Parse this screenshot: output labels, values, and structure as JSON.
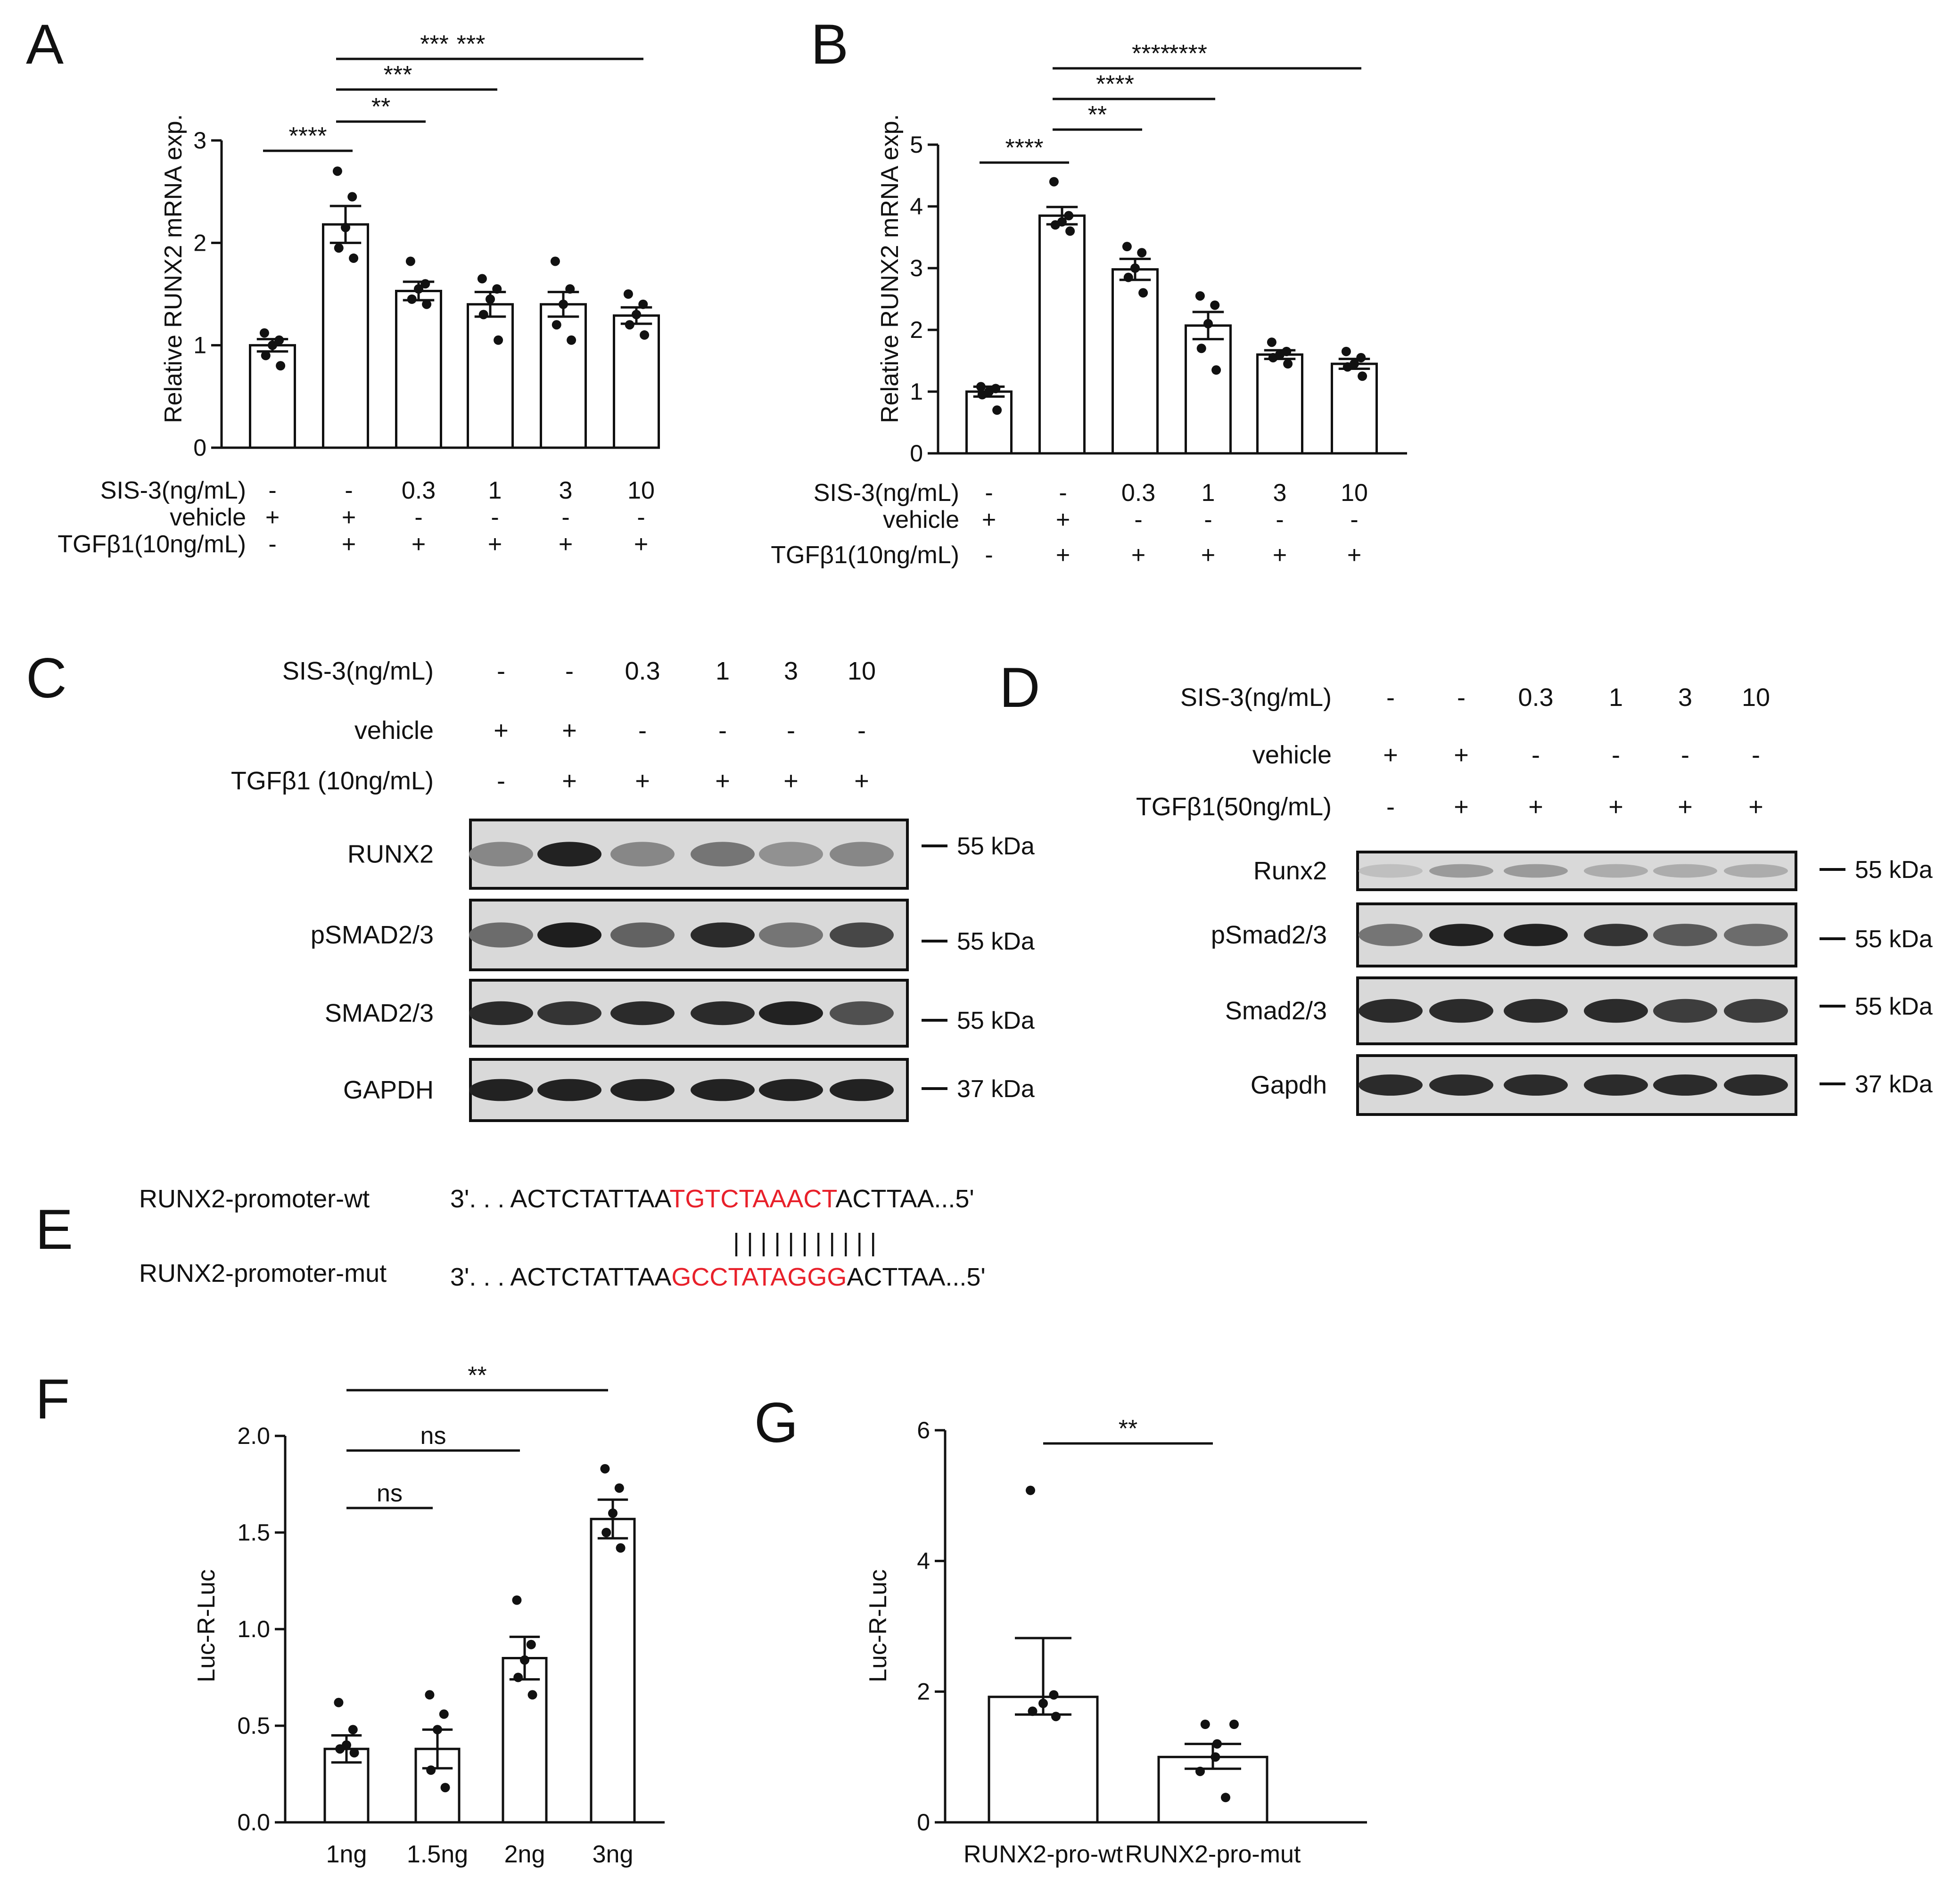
{
  "panels": {
    "A": {
      "letter": "A"
    },
    "B": {
      "letter": "B"
    },
    "C": {
      "letter": "C"
    },
    "D": {
      "letter": "D"
    },
    "E": {
      "letter": "E"
    },
    "F": {
      "letter": "F"
    },
    "G": {
      "letter": "G"
    }
  },
  "treatments": {
    "sis_label": "SIS-3(ng/mL)",
    "vehicle_label": "vehicle",
    "tgf_label_ab": "TGFβ1(10ng/mL)",
    "tgf_label_c": "TGFβ1 (10ng/mL)",
    "tgf_label_d": "TGFβ1(50ng/mL)",
    "sis_values": [
      "-",
      "-",
      "0.3",
      "1",
      "3",
      "10"
    ],
    "vehicle_values": [
      "+",
      "+",
      "-",
      "-",
      "-",
      "-"
    ],
    "tgf_values": [
      "-",
      "+",
      "+",
      "+",
      "+",
      "+"
    ]
  },
  "blots": {
    "C": {
      "rows": [
        {
          "name": "RUNX2",
          "kda": "55 kDa"
        },
        {
          "name": "pSMAD2/3",
          "kda": "55 kDa"
        },
        {
          "name": "SMAD2/3",
          "kda": "55 kDa"
        },
        {
          "name": "GAPDH",
          "kda": "37 kDa"
        }
      ],
      "intensity": [
        [
          0.35,
          0.9,
          0.35,
          0.45,
          0.3,
          0.35
        ],
        [
          0.5,
          0.92,
          0.55,
          0.85,
          0.45,
          0.7
        ],
        [
          0.85,
          0.8,
          0.85,
          0.85,
          0.9,
          0.65
        ],
        [
          0.9,
          0.9,
          0.9,
          0.9,
          0.9,
          0.9
        ]
      ]
    },
    "D": {
      "rows": [
        {
          "name": "Runx2",
          "kda": "55 kDa"
        },
        {
          "name": "pSmad2/3",
          "kda": "55 kDa"
        },
        {
          "name": "Smad2/3",
          "kda": "55 kDa"
        },
        {
          "name": "Gapdh",
          "kda": "37 kDa"
        }
      ],
      "intensity": [
        [
          0.05,
          0.25,
          0.25,
          0.15,
          0.15,
          0.15
        ],
        [
          0.45,
          0.9,
          0.9,
          0.8,
          0.6,
          0.5
        ],
        [
          0.85,
          0.85,
          0.85,
          0.85,
          0.75,
          0.75
        ],
        [
          0.85,
          0.85,
          0.85,
          0.85,
          0.85,
          0.85
        ]
      ]
    }
  },
  "sequence": {
    "wt_label": "RUNX2-promoter-wt",
    "mut_label": "RUNX2-promoter-mut",
    "prefix": "3'. . . ACTCTATTAA",
    "wt_core": "TGTCTAAACT",
    "mut_core": "GCCTATAGGG",
    "suffix": "ACTTAA...5'",
    "bars": "| | | | | | | | | | |",
    "highlight_color": "#e8202a"
  },
  "chart_data": [
    {
      "panel": "A",
      "type": "bar",
      "ylabel": "Relative RUNX2 mRNA exp.",
      "ylim": [
        0,
        3
      ],
      "yticks": [
        "0",
        "1",
        "2",
        "3"
      ],
      "values": [
        1.0,
        2.18,
        1.53,
        1.4,
        1.4,
        1.29
      ],
      "sem": [
        0.06,
        0.18,
        0.09,
        0.12,
        0.12,
        0.08
      ],
      "points": [
        [
          0.8,
          0.9,
          1.0,
          1.05,
          1.12
        ],
        [
          1.85,
          1.95,
          2.15,
          2.45,
          2.7
        ],
        [
          1.4,
          1.45,
          1.55,
          1.6,
          1.82
        ],
        [
          1.05,
          1.3,
          1.45,
          1.55,
          1.65
        ],
        [
          1.05,
          1.2,
          1.4,
          1.55,
          1.82
        ],
        [
          1.1,
          1.2,
          1.3,
          1.4,
          1.5
        ]
      ],
      "comparisons": [
        {
          "from": 0,
          "to": 1,
          "label": "****"
        },
        {
          "from": 1,
          "to": 2,
          "label": "**"
        },
        {
          "from": 1,
          "to": 3,
          "label": "***"
        },
        {
          "from": 1,
          "to": 4,
          "label": "***"
        },
        {
          "from": 1,
          "to": 5,
          "label": "***"
        }
      ]
    },
    {
      "panel": "B",
      "type": "bar",
      "ylabel": "Relative RUNX2 mRNA exp.",
      "ylim": [
        0,
        5
      ],
      "yticks": [
        "0",
        "1",
        "2",
        "3",
        "4",
        "5"
      ],
      "values": [
        1.0,
        3.85,
        2.98,
        2.07,
        1.6,
        1.45
      ],
      "sem": [
        0.08,
        0.14,
        0.17,
        0.22,
        0.07,
        0.08
      ],
      "points": [
        [
          0.7,
          0.95,
          1.0,
          1.05,
          1.08
        ],
        [
          3.6,
          3.7,
          3.75,
          3.85,
          4.4
        ],
        [
          2.6,
          2.85,
          3.0,
          3.25,
          3.35
        ],
        [
          1.35,
          1.7,
          2.1,
          2.4,
          2.55
        ],
        [
          1.45,
          1.55,
          1.6,
          1.65,
          1.8
        ],
        [
          1.25,
          1.4,
          1.45,
          1.55,
          1.65
        ]
      ],
      "comparisons": [
        {
          "from": 0,
          "to": 1,
          "label": "****"
        },
        {
          "from": 1,
          "to": 2,
          "label": "**"
        },
        {
          "from": 1,
          "to": 3,
          "label": "****"
        },
        {
          "from": 1,
          "to": 4,
          "label": "****"
        },
        {
          "from": 1,
          "to": 5,
          "label": "****"
        }
      ]
    },
    {
      "panel": "F",
      "type": "bar",
      "ylabel": "Luc-R-Luc",
      "ylim": [
        0,
        2
      ],
      "yticks": [
        "0.0",
        "0.5",
        "1.0",
        "1.5",
        "2.0"
      ],
      "categories": [
        "1ng",
        "1.5ng",
        "2ng",
        "3ng"
      ],
      "values": [
        0.38,
        0.38,
        0.85,
        1.57
      ],
      "sem": [
        0.07,
        0.1,
        0.11,
        0.1
      ],
      "points": [
        [
          0.36,
          0.38,
          0.4,
          0.48,
          0.62
        ],
        [
          0.18,
          0.27,
          0.48,
          0.56,
          0.66
        ],
        [
          0.66,
          0.75,
          0.84,
          0.92,
          1.15
        ],
        [
          1.42,
          1.5,
          1.6,
          1.73,
          1.83
        ]
      ],
      "comparisons": [
        {
          "from": 0,
          "to": 1,
          "label": "ns"
        },
        {
          "from": 0,
          "to": 2,
          "label": "ns"
        },
        {
          "from": 0,
          "to": 3,
          "label": "**"
        }
      ]
    },
    {
      "panel": "G",
      "type": "bar",
      "ylabel": "Luc-R-Luc",
      "ylim": [
        0,
        6
      ],
      "yticks": [
        "0",
        "2",
        "4",
        "6"
      ],
      "categories": [
        "RUNX2-pro-wt",
        "RUNX2-pro-mut"
      ],
      "values": [
        1.92,
        1.0
      ],
      "sem_lo": [
        1.65,
        0.82
      ],
      "sem_hi": [
        2.82,
        1.2
      ],
      "points": [
        [
          1.62,
          1.7,
          1.82,
          1.95,
          5.08
        ],
        [
          0.38,
          0.78,
          1.0,
          1.2,
          1.5,
          1.5
        ]
      ],
      "comparisons": [
        {
          "from": 0,
          "to": 1,
          "label": "**"
        }
      ]
    }
  ]
}
